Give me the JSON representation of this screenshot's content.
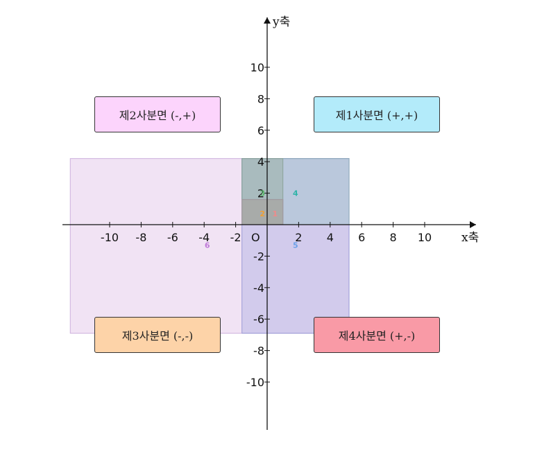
{
  "axes": {
    "x_label": "x축",
    "y_label": "y축",
    "origin_label": "O",
    "x_ticks": [
      {
        "value": -10,
        "label": "-10"
      },
      {
        "value": -8,
        "label": "-8"
      },
      {
        "value": -6,
        "label": "-6"
      },
      {
        "value": -4,
        "label": "-4"
      },
      {
        "value": -2,
        "label": "-2"
      },
      {
        "value": 2,
        "label": "2"
      },
      {
        "value": 4,
        "label": "4"
      },
      {
        "value": 6,
        "label": "6"
      },
      {
        "value": 8,
        "label": "8"
      },
      {
        "value": 10,
        "label": "10"
      }
    ],
    "y_ticks": [
      {
        "value": 10,
        "label": "10"
      },
      {
        "value": 8,
        "label": "8"
      },
      {
        "value": 6,
        "label": "6"
      },
      {
        "value": 4,
        "label": "4"
      },
      {
        "value": 2,
        "label": "2"
      },
      {
        "value": -2,
        "label": "-2"
      },
      {
        "value": -4,
        "label": "-4"
      },
      {
        "value": -6,
        "label": "-6"
      },
      {
        "value": -8,
        "label": "-8"
      },
      {
        "value": -10,
        "label": "-10"
      }
    ],
    "x_range": [
      -12.7,
      13.2
    ],
    "y_range": [
      -13.0,
      13.2
    ]
  },
  "quadrants": {
    "q1": {
      "label": "제1사분면 (+,+)",
      "color": "#b3ebfa"
    },
    "q2": {
      "label": "제2사분면 (-,+)",
      "color": "#fcd4fc"
    },
    "q3": {
      "label": "제3사분면 (-,-)",
      "color": "#fdd3a8"
    },
    "q4": {
      "label": "제4사분면 (+,-)",
      "color": "#f99aa6"
    }
  },
  "rectangles": [
    {
      "id": "6",
      "label": "6",
      "x1": -12.5,
      "x2": 5.2,
      "y1": -6.9,
      "y2": 4.2,
      "fill": "#e6cceb",
      "stroke": "#cdb0dd",
      "label_color": "#c07ad8",
      "label_x": -3.8,
      "label_y": -1.3
    },
    {
      "id": "5",
      "label": "5",
      "x1": -1.6,
      "x2": 5.2,
      "y1": -6.9,
      "y2": 4.2,
      "fill": "#b8b8e6",
      "stroke": "#9a9ad6",
      "label_color": "#6aa0e8",
      "label_x": 1.8,
      "label_y": -1.3
    },
    {
      "id": "4",
      "label": "4",
      "x1": -1.6,
      "x2": 5.2,
      "y1": 0,
      "y2": 4.2,
      "fill": "#a6c6cf",
      "stroke": "#8aa8b8",
      "label_color": "#2fb3a8",
      "label_x": 1.8,
      "label_y": 2.0
    },
    {
      "id": "3",
      "label": "3",
      "x1": -1.6,
      "x2": 1.0,
      "y1": 0,
      "y2": 4.2,
      "fill": "#9ab0a6",
      "stroke": "#8aa39a",
      "label_color": "#59b86b",
      "label_x": -0.3,
      "label_y": 2.0
    },
    {
      "id": "2",
      "label": "2",
      "x1": -1.6,
      "x2": 1.0,
      "y1": 0,
      "y2": 1.6,
      "fill": "#a6a8a0",
      "stroke": "#a09aa0",
      "label_color": "#f0a034",
      "label_x": -0.3,
      "label_y": 0.7
    },
    {
      "id": "1",
      "label": "1",
      "x1": -1.6,
      "x2": 1.0,
      "y1": 0,
      "y2": 1.6,
      "fill": "#aaa8a6",
      "stroke": "#a09aa0",
      "label_color": "#f08a8a",
      "label_x": 0.5,
      "label_y": 0.7
    }
  ]
}
